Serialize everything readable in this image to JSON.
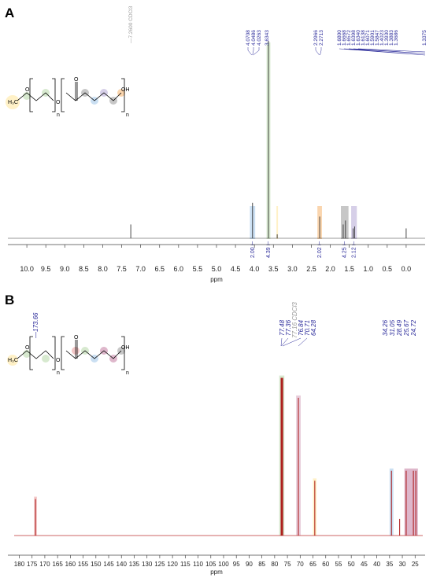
{
  "panels": [
    {
      "id": "A",
      "label": "A",
      "xlabel": "ppm",
      "xlim": [
        10.5,
        -0.5
      ],
      "ticks": [
        10.0,
        9.5,
        9.0,
        8.5,
        8.0,
        7.5,
        7.0,
        6.5,
        6.0,
        5.5,
        5.0,
        4.5,
        4.0,
        3.5,
        3.0,
        2.5,
        2.0,
        1.5,
        1.0,
        0.5,
        0.0
      ],
      "tick_labels": [
        "10.0",
        "9.5",
        "9.0",
        "8.5",
        "8.0",
        "7.5",
        "7.0",
        "6.5",
        "6.0",
        "5.5",
        "5.0",
        "4.5",
        "4.0",
        "3.5",
        "3.0",
        "2.5",
        "2.0",
        "1.5",
        "1.0",
        "0.5",
        "0.0"
      ],
      "solvent_label": "7.2600 CDCl3",
      "peak_labels": [
        "4.0708",
        "4.0486",
        "4.0263",
        "3.6343",
        "2.2966",
        "2.2713",
        "1.6800",
        "1.6668",
        "1.6572",
        "1.6398",
        "1.6340",
        "1.6138",
        "1.6071",
        "1.5901",
        "1.5847",
        "1.4023",
        "1.3930",
        "1.3883",
        "1.3686",
        "1.3375"
      ],
      "integrals": [
        {
          "ppm": 4.05,
          "value": "2.00"
        },
        {
          "ppm": 3.63,
          "value": "4.39"
        },
        {
          "ppm": 2.28,
          "value": "2.02"
        },
        {
          "ppm": 1.63,
          "value": "4.25"
        },
        {
          "ppm": 1.38,
          "value": "2.12"
        }
      ],
      "peaks": [
        {
          "ppm": 7.26,
          "height": 0.07
        },
        {
          "ppm": 4.05,
          "height": 0.18
        },
        {
          "ppm": 3.63,
          "height": 1.0
        },
        {
          "ppm": 3.4,
          "height": 0.02
        },
        {
          "ppm": 2.28,
          "height": 0.11
        },
        {
          "ppm": 1.66,
          "height": 0.07
        },
        {
          "ppm": 1.6,
          "height": 0.09
        },
        {
          "ppm": 1.4,
          "height": 0.05
        },
        {
          "ppm": 1.36,
          "height": 0.06
        },
        {
          "ppm": 0.0,
          "height": 0.05
        }
      ],
      "highlights": [
        {
          "from": 4.12,
          "to": 3.98,
          "color": "#9fc5e8"
        },
        {
          "from": 3.68,
          "to": 3.58,
          "color": "#b6d7a8"
        },
        {
          "from": 3.42,
          "to": 3.38,
          "color": "#ffe599"
        },
        {
          "from": 2.34,
          "to": 2.22,
          "color": "#f6b26b"
        },
        {
          "from": 1.72,
          "to": 1.52,
          "color": "#999999"
        },
        {
          "from": 1.45,
          "to": 1.3,
          "color": "#b4a7d6"
        }
      ],
      "structure_labels": {
        "oh": "OH",
        "n1": "n",
        "n2": "n",
        "o1": "O",
        "o2": "O",
        "o3": "O",
        "ch3": "H₃C"
      }
    },
    {
      "id": "B",
      "label": "B",
      "xlabel": "ppm",
      "xlim": [
        182,
        22
      ],
      "ticks": [
        180,
        175,
        170,
        165,
        160,
        155,
        150,
        145,
        140,
        135,
        130,
        125,
        120,
        115,
        110,
        105,
        100,
        95,
        90,
        85,
        80,
        75,
        70,
        65,
        60,
        55,
        50,
        45,
        40,
        35,
        30,
        25
      ],
      "tick_labels": [
        "180",
        "175",
        "170",
        "165",
        "160",
        "155",
        "150",
        "145",
        "140",
        "135",
        "130",
        "125",
        "120",
        "115",
        "110",
        "105",
        "100",
        "95",
        "90",
        "85",
        "80",
        "75",
        "70",
        "65",
        "60",
        "55",
        "50",
        "45",
        "40",
        "35",
        "30",
        "25"
      ],
      "left_label": "173.66",
      "solvent_label": "77.16 CDCl3",
      "mid_labels": [
        "77.48",
        "77.36",
        "77.16",
        "76.84",
        "70.71",
        "64.28"
      ],
      "right_labels": [
        "34.26",
        "31.05",
        "28.49",
        "25.67",
        "24.72"
      ],
      "peaks": [
        {
          "ppm": 173.66,
          "height": 0.22
        },
        {
          "ppm": 77.48,
          "height": 0.95
        },
        {
          "ppm": 77.16,
          "height": 0.95
        },
        {
          "ppm": 76.84,
          "height": 0.95
        },
        {
          "ppm": 70.71,
          "height": 0.83
        },
        {
          "ppm": 64.28,
          "height": 0.33
        },
        {
          "ppm": 34.26,
          "height": 0.39
        },
        {
          "ppm": 31.05,
          "height": 0.1
        },
        {
          "ppm": 28.49,
          "height": 0.39
        },
        {
          "ppm": 25.67,
          "height": 0.39
        },
        {
          "ppm": 24.72,
          "height": 0.39
        }
      ],
      "highlights": [
        {
          "from": 174.2,
          "to": 173.1,
          "color": "#ea9999"
        },
        {
          "from": 78.2,
          "to": 76.2,
          "color": "#b6d7a8"
        },
        {
          "from": 71.6,
          "to": 69.8,
          "color": "#d5a6bd"
        },
        {
          "from": 65.0,
          "to": 63.6,
          "color": "#ffe599"
        },
        {
          "from": 35.0,
          "to": 33.5,
          "color": "#9fc5e8"
        },
        {
          "from": 29.2,
          "to": 23.9,
          "color": "#c27ba0"
        }
      ],
      "structure_labels": {
        "oh": "OH",
        "n1": "n",
        "n2": "n",
        "o1": "O",
        "o2": "O",
        "o3": "O",
        "ch3": "H₃C"
      }
    }
  ],
  "chart_data": [
    {
      "type": "line",
      "title": "A",
      "xlabel": "ppm",
      "xlim": [
        10.5,
        -0.5
      ],
      "x": [
        7.26,
        4.05,
        3.63,
        3.4,
        2.28,
        1.66,
        1.6,
        1.4,
        1.36,
        0.0
      ],
      "series": [
        {
          "values": [
            0.07,
            0.18,
            1.0,
            0.02,
            0.11,
            0.07,
            0.09,
            0.05,
            0.06,
            0.05
          ]
        }
      ],
      "integrals": [
        "2.00",
        "4.39",
        "2.02",
        "4.25",
        "2.12"
      ]
    },
    {
      "type": "line",
      "title": "B",
      "xlabel": "ppm",
      "xlim": [
        182,
        22
      ],
      "x": [
        173.66,
        77.48,
        77.16,
        76.84,
        70.71,
        64.28,
        34.26,
        31.05,
        28.49,
        25.67,
        24.72
      ],
      "series": [
        {
          "values": [
            0.22,
            0.95,
            0.95,
            0.95,
            0.83,
            0.33,
            0.39,
            0.1,
            0.39,
            0.39,
            0.39
          ]
        }
      ]
    }
  ]
}
